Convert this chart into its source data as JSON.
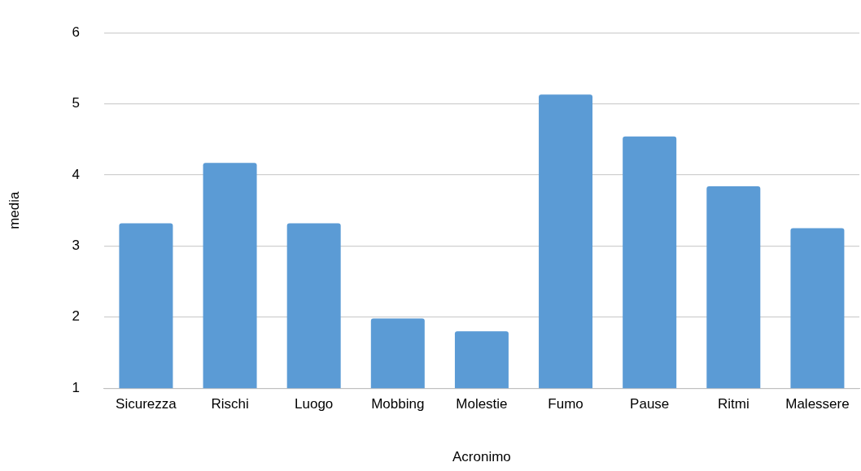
{
  "chart_data": {
    "type": "bar",
    "xlabel": "Acronimo",
    "ylabel": "media",
    "categories": [
      "Sicurezza",
      "Rischi",
      "Luogo",
      "Mobbing",
      "Molestie",
      "Fumo",
      "Pause",
      "Ritmi",
      "Malessere"
    ],
    "values": [
      3.32,
      4.17,
      3.32,
      1.98,
      1.8,
      5.13,
      4.54,
      3.84,
      3.25
    ],
    "color": "#5b9bd5",
    "ylim": [
      1,
      6
    ],
    "yticks": [
      1,
      2,
      3,
      4,
      5,
      6
    ],
    "grid": "y",
    "legend": false
  }
}
